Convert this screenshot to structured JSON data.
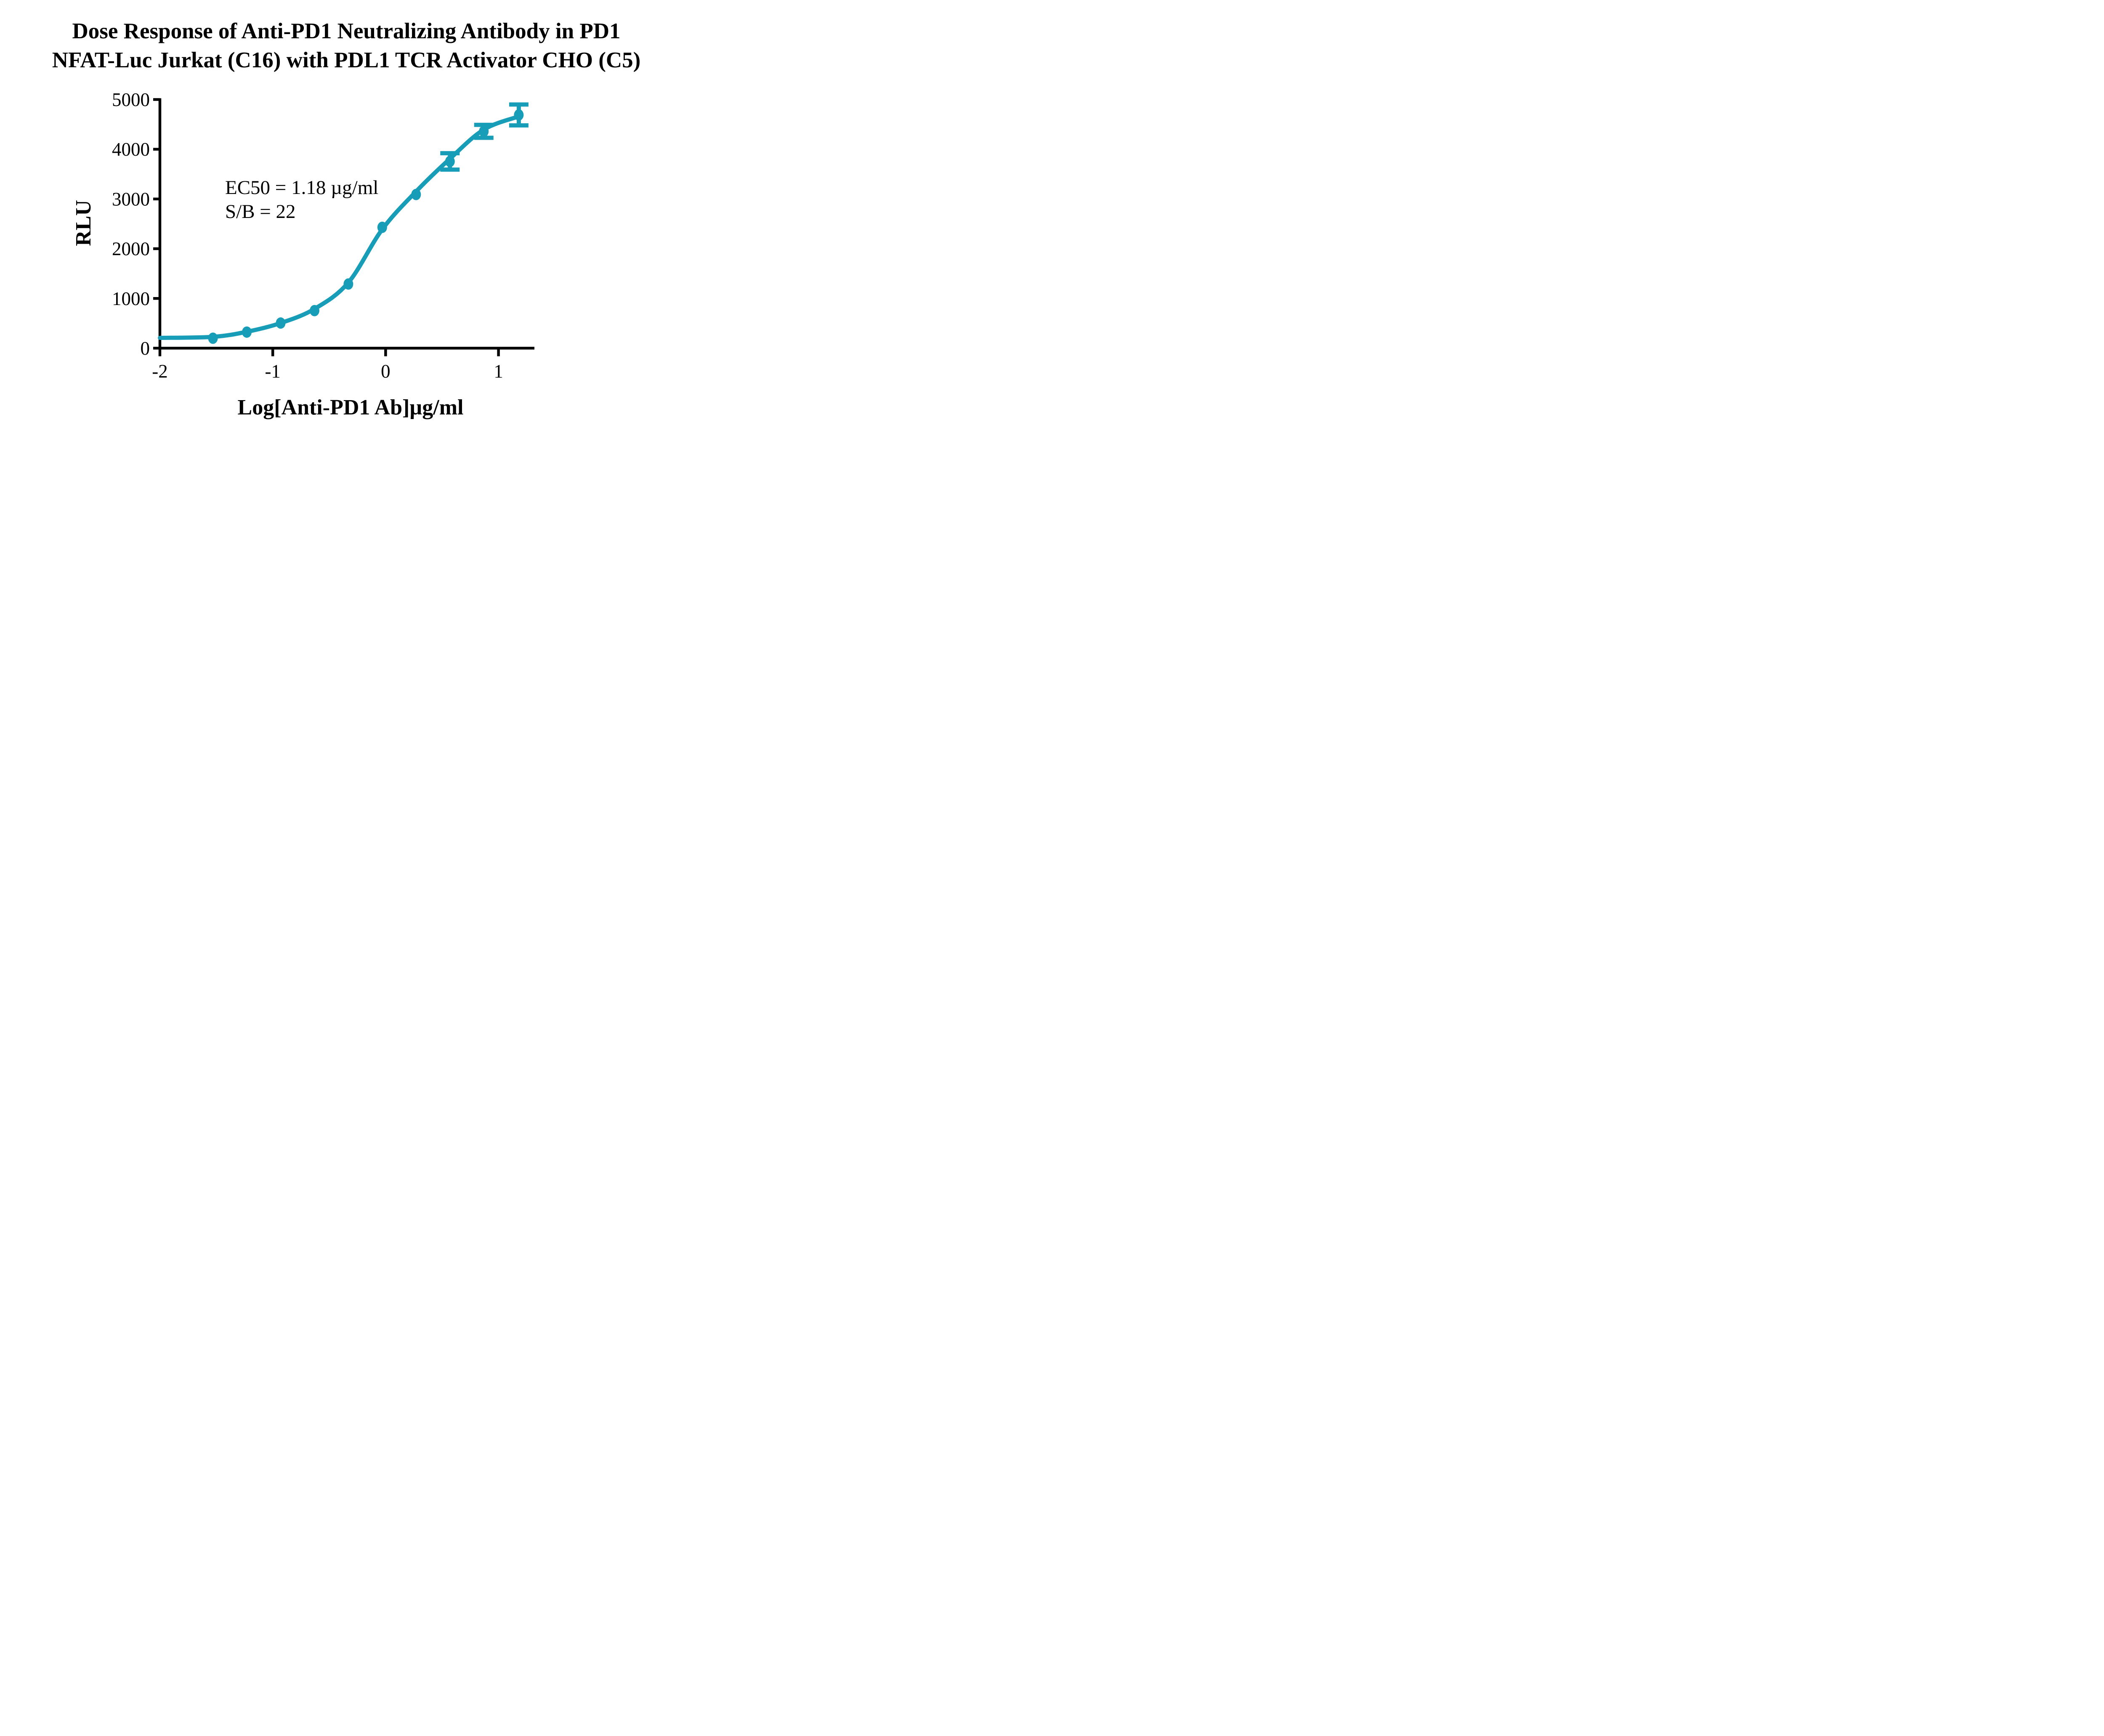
{
  "title": {
    "line1": "Dose Response of Anti-PD1 Neutralizing Antibody in PD1",
    "line2": "NFAT-Luc Jurkat (C16) with PDL1 TCR Activator CHO (C5)"
  },
  "annotation": {
    "line1": "EC50 = 1.18 µg/ml",
    "line2": "S/B = 22"
  },
  "colors": {
    "curve": "#189DB8",
    "axis": "#000000",
    "background": "#ffffff"
  },
  "chart_data": {
    "type": "scatter",
    "subtype": "dose-response sigmoidal fit with error bars",
    "title": "Dose Response of Anti-PD1 Neutralizing Antibody in PD1 NFAT-Luc Jurkat (C16) with PDL1 TCR Activator CHO (C5)",
    "xlabel": "Log[Anti-PD1 Ab]µg/ml",
    "ylabel": "RLU",
    "xlim": [
      -2,
      1.33
    ],
    "ylim": [
      0,
      5000
    ],
    "x_ticks": [
      -2,
      -1,
      0,
      1
    ],
    "y_ticks": [
      0,
      1000,
      2000,
      3000,
      4000,
      5000
    ],
    "grid": false,
    "legend": "none",
    "annotations": [
      "EC50 = 1.18 µg/ml",
      "S/B = 22"
    ],
    "ec50_ug_ml": 1.18,
    "signal_to_background": 22,
    "series": [
      {
        "name": "Anti-PD1 Ab",
        "color": "#189DB8",
        "marker": "circle",
        "x_log": [
          -1.53,
          -1.23,
          -0.93,
          -0.63,
          -0.33,
          -0.03,
          0.27,
          0.57,
          0.87,
          1.18
        ],
        "y_rlu": [
          200,
          323,
          505,
          755,
          1290,
          2430,
          3090,
          3755,
          4360,
          4690
        ],
        "y_sd": [
          0,
          0,
          0,
          0,
          0,
          0,
          0,
          165,
          130,
          210
        ],
        "fit_curve_points": [
          [
            -2.0,
            207
          ],
          [
            -1.53,
            228
          ],
          [
            -1.23,
            330
          ],
          [
            -0.93,
            505
          ],
          [
            -0.63,
            790
          ],
          [
            -0.33,
            1320
          ],
          [
            -0.03,
            2390
          ],
          [
            0.27,
            3150
          ],
          [
            0.57,
            3810
          ],
          [
            0.87,
            4395
          ],
          [
            1.18,
            4660
          ]
        ]
      }
    ]
  }
}
